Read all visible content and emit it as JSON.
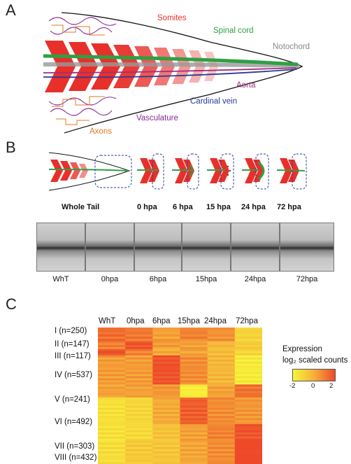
{
  "panels": {
    "a": "A",
    "b": "B",
    "c": "C"
  },
  "panel_a": {
    "somites": "Somites",
    "spinal_cord": "Spinal cord",
    "notochord": "Notochord",
    "aorta": "Aorta",
    "cardinal_vein": "Cardinal vein",
    "vasculature": "Vasculature",
    "axons": "Axons",
    "colors": {
      "somites": "#e8302a",
      "spinal_cord": "#2ea043",
      "notochord": "#888888",
      "aorta": "#a0307a",
      "cardinal_vein": "#2a3a9a",
      "vasculature": "#8a2a9a",
      "axons": "#e07a20"
    }
  },
  "panel_b": {
    "stages": [
      "Whole Tail",
      "0 hpa",
      "6 hpa",
      "15 hpa",
      "24 hpa",
      "72 hpa"
    ],
    "photo_captions": [
      "WhT",
      "0hpa",
      "6hpa",
      "15hpa",
      "24hpa",
      "72hpa"
    ]
  },
  "chart_data": {
    "type": "heatmap",
    "columns": [
      "WhT",
      "0hpa",
      "6hpa",
      "15hpa",
      "24hpa",
      "72hpa"
    ],
    "rows": [
      {
        "label": "I (n=250)",
        "values": [
          1.3,
          1.1,
          0.3,
          0.9,
          0.6,
          -1.0
        ]
      },
      {
        "label": "II (n=147)",
        "values": [
          0.9,
          1.8,
          0.4,
          0.3,
          -0.2,
          -0.8
        ]
      },
      {
        "label": "III (n=117)",
        "values": [
          2.0,
          0.9,
          0.1,
          0.2,
          -0.3,
          -1.1
        ]
      },
      {
        "label": "IV (n=537)",
        "values": [
          0.4,
          0.4,
          1.9,
          0.7,
          -0.2,
          -1.7
        ]
      },
      {
        "label": "V (n=241)",
        "values": [
          0.3,
          0.3,
          0.5,
          -1.8,
          0.3,
          1.2
        ]
      },
      {
        "label": "VI (n=492)",
        "values": [
          -1.4,
          -1.1,
          0.1,
          1.6,
          0.7,
          0.5
        ]
      },
      {
        "label": "VII (n=303)",
        "values": [
          -1.4,
          -1.2,
          -0.5,
          0.3,
          0.9,
          1.8
        ]
      },
      {
        "label": "VIII (n=432)",
        "values": [
          -1.3,
          -0.7,
          -0.6,
          0.2,
          0.7,
          2.3
        ]
      }
    ],
    "legend": {
      "title": "Expression",
      "subtitle": "log₂ scaled counts",
      "ticks": [
        "-2",
        "0",
        "2"
      ],
      "range": [
        -2,
        2
      ]
    },
    "colorscale": [
      "#f7f53a",
      "#f5b13a",
      "#ee4a2a"
    ]
  }
}
